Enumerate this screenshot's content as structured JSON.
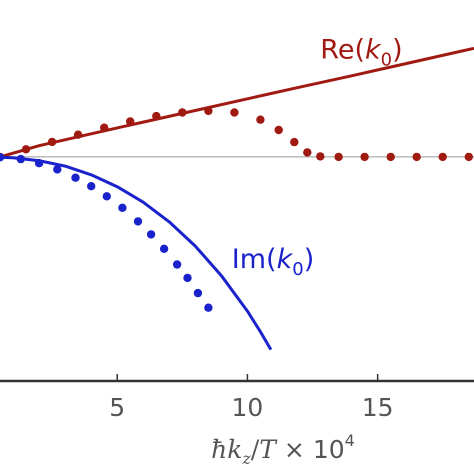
{
  "chart_data": {
    "type": "line",
    "title": "",
    "xlabel": {
      "hbar": "ħ",
      "k": "k",
      "sub": "z",
      "rest": "/",
      "T": "T",
      "times": " × 10",
      "exp": "4"
    },
    "ylabel": "",
    "xlim": [
      0.5,
      18.7
    ],
    "ylim": [
      -1.0,
      0.7
    ],
    "x_ticks": [
      {
        "value": 5,
        "label": "5"
      },
      {
        "value": 10,
        "label": "10"
      },
      {
        "value": 15,
        "label": "15"
      }
    ],
    "grid": false,
    "baseline_y": 0,
    "series": [
      {
        "name": "Re(k0)",
        "label_main": "Re(",
        "label_k": "k",
        "label_sub": "0",
        "label_close": ")",
        "label_at": [
          12.8,
          0.44
        ],
        "style": "solid",
        "color": "#a01a12",
        "x": [
          0.5,
          2,
          4,
          6,
          8,
          10,
          12,
          14,
          16,
          18,
          18.7
        ],
        "y": [
          0.0,
          0.05,
          0.103,
          0.155,
          0.207,
          0.259,
          0.311,
          0.362,
          0.414,
          0.466,
          0.484
        ]
      },
      {
        "name": "Re(k0) dotted",
        "style": "dotted",
        "color": "#a01a12",
        "x": [
          0.5,
          1.5,
          2.5,
          3.5,
          4.5,
          5.5,
          6.5,
          7.5,
          8.5,
          9.5,
          10.5,
          11.2,
          11.8,
          12.3,
          12.8,
          13.5,
          14.5,
          15.5,
          16.5,
          17.5,
          18.5
        ],
        "y": [
          0.0,
          0.034,
          0.067,
          0.099,
          0.13,
          0.158,
          0.182,
          0.198,
          0.205,
          0.198,
          0.166,
          0.12,
          0.066,
          0.02,
          0.002,
          0.0,
          0.0,
          0.0,
          0.0,
          0.0,
          0.0
        ]
      },
      {
        "name": "Im(k0)",
        "label_main": "Im(",
        "label_k": "k",
        "label_sub": "0",
        "label_close": ")",
        "label_at": [
          9.4,
          -0.495
        ],
        "style": "solid",
        "color": "#1a22cc",
        "x": [
          0.5,
          1,
          2,
          3,
          4,
          5,
          6,
          7,
          8,
          9,
          10,
          10.5,
          10.9
        ],
        "y": [
          -0.002,
          -0.004,
          -0.017,
          -0.041,
          -0.08,
          -0.133,
          -0.202,
          -0.29,
          -0.398,
          -0.53,
          -0.688,
          -0.78,
          -0.86
        ]
      },
      {
        "name": "Im(k0) dotted",
        "style": "dotted",
        "color": "#1a22cc",
        "x": [
          0.5,
          1.3,
          2.0,
          2.7,
          3.4,
          4.0,
          4.6,
          5.2,
          5.8,
          6.3,
          6.8,
          7.3,
          7.7,
          8.1,
          8.5
        ],
        "y": [
          -0.002,
          -0.01,
          -0.028,
          -0.056,
          -0.093,
          -0.131,
          -0.176,
          -0.227,
          -0.288,
          -0.346,
          -0.41,
          -0.48,
          -0.54,
          -0.608,
          -0.673
        ]
      }
    ]
  }
}
